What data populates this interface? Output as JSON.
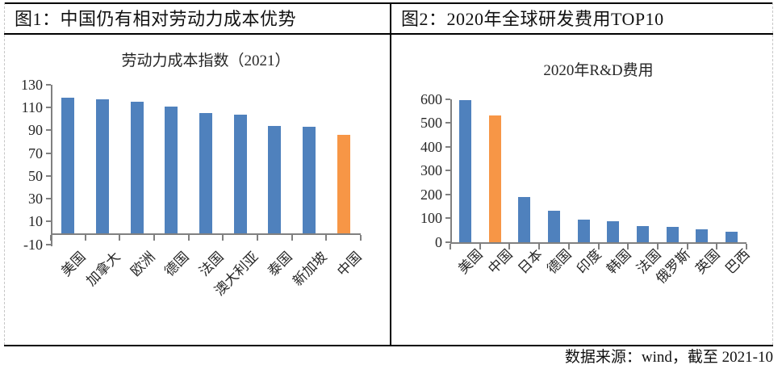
{
  "header": {
    "fig1_title": "图1：中国仍有相对劳动力成本优势",
    "fig2_title": "图2：2020年全球研发费用TOP10"
  },
  "footer": {
    "source_note": "数据来源：wind，截至 2021-10"
  },
  "colors": {
    "bar_blue": "#4f81bd",
    "bar_orange": "#f79646",
    "axis_gray": "#808080",
    "border_black": "#000000"
  },
  "chart_data": [
    {
      "type": "bar",
      "title": "劳动力成本指数（2021）",
      "categories": [
        "美国",
        "加拿大",
        "欧洲",
        "德国",
        "法国",
        "澳大利亚",
        "泰国",
        "新加坡",
        "中国"
      ],
      "values": [
        119,
        117,
        115,
        111,
        105,
        104,
        94,
        93,
        86
      ],
      "highlight_category": "中国",
      "xlabel": "",
      "ylabel": "",
      "ylim": [
        -10,
        130
      ],
      "ytick_step": 20,
      "grid": false,
      "legend_position": "none"
    },
    {
      "type": "bar",
      "title": "2020年R&D费用",
      "categories": [
        "美国",
        "中国",
        "日本",
        "德国",
        "印度",
        "韩国",
        "法国",
        "俄罗斯",
        "英国",
        "巴西"
      ],
      "values": [
        597,
        533,
        190,
        130,
        95,
        88,
        68,
        62,
        55,
        42
      ],
      "highlight_category": "中国",
      "xlabel": "",
      "ylabel": "",
      "ylim": [
        0,
        600
      ],
      "ytick_step": 100,
      "grid": false,
      "legend_position": "none"
    }
  ]
}
